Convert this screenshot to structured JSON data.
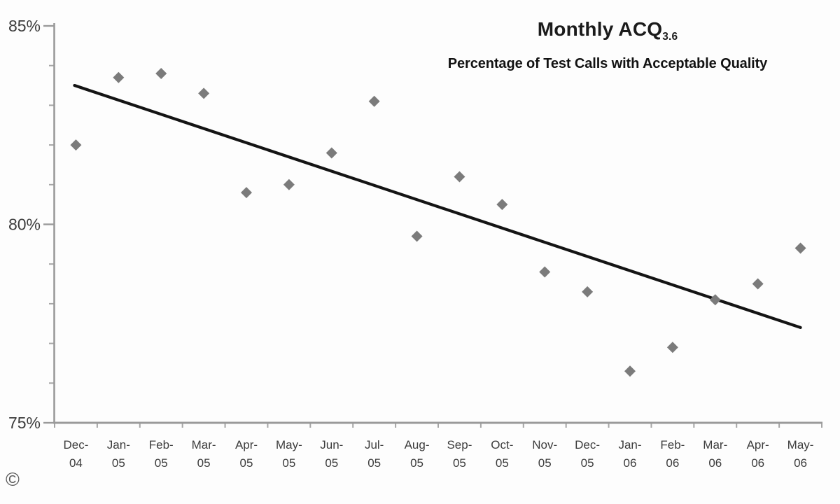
{
  "page": {
    "copyright_symbol": "©"
  },
  "header": {
    "title_main": "Monthly ACQ",
    "title_subscript": "3.6",
    "subtitle": "Percentage of Test Calls with Acceptable Quality"
  },
  "chart_data": {
    "type": "scatter",
    "title": "Monthly ACQ 3.6",
    "subtitle": "Percentage of Test Calls with Acceptable Quality",
    "categories": [
      "Dec-04",
      "Jan-05",
      "Feb-05",
      "Mar-05",
      "Apr-05",
      "May-05",
      "Jun-05",
      "Jul-05",
      "Aug-05",
      "Sep-05",
      "Oct-05",
      "Nov-05",
      "Dec-05",
      "Jan-06",
      "Feb-06",
      "Mar-06",
      "Apr-06",
      "May-06"
    ],
    "x_tick_labels_line1": [
      "Dec-",
      "Jan-",
      "Feb-",
      "Mar-",
      "Apr-",
      "May-",
      "Jun-",
      "Jul-",
      "Aug-",
      "Sep-",
      "Oct-",
      "Nov-",
      "Dec-",
      "Jan-",
      "Feb-",
      "Mar-",
      "Apr-",
      "May-"
    ],
    "x_tick_labels_line2": [
      "04",
      "05",
      "05",
      "05",
      "05",
      "05",
      "05",
      "05",
      "05",
      "05",
      "05",
      "05",
      "05",
      "06",
      "06",
      "06",
      "06",
      "06"
    ],
    "values": [
      82.0,
      83.7,
      83.8,
      83.3,
      80.8,
      81.0,
      81.8,
      83.1,
      79.7,
      81.2,
      80.5,
      78.8,
      78.3,
      76.3,
      76.9,
      78.1,
      78.5,
      79.4
    ],
    "trendline": {
      "start_category": "Dec-04",
      "start_value": 83.5,
      "end_category": "May-06",
      "end_value": 77.4
    },
    "ylim": [
      75,
      85
    ],
    "y_ticks": [
      {
        "value": 85,
        "label": "85%"
      },
      {
        "value": 80,
        "label": "80%"
      },
      {
        "value": 75,
        "label": "75%"
      }
    ],
    "y_minor_tick_step": 1,
    "grid": false,
    "legend": false,
    "xlabel": "",
    "ylabel": "",
    "colors": {
      "marker": "#7b7b7b",
      "trend_line": "#141414",
      "axis": "#9a9a9a",
      "tick": "#a5a5a5",
      "axis_label": "#3c3c3c",
      "title_text": "#1b1b1b"
    }
  }
}
